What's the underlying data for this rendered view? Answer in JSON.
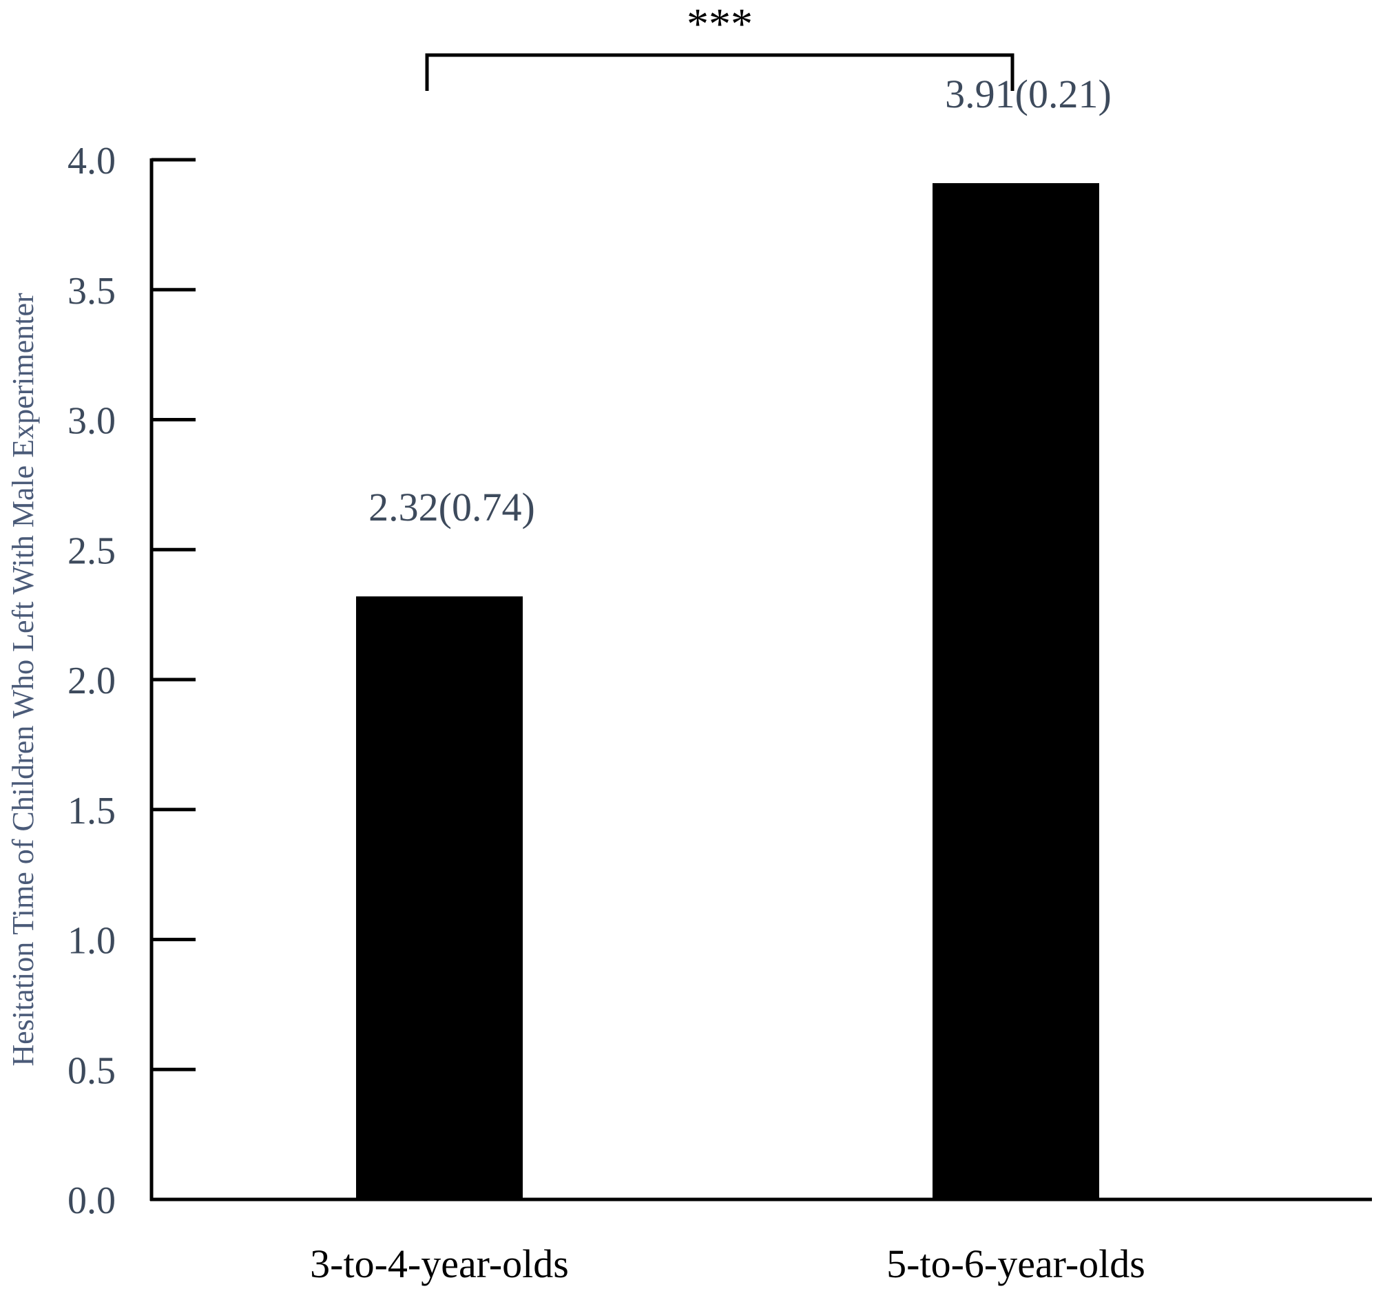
{
  "chart_data": {
    "type": "bar",
    "categories": [
      "3-to-4-year-olds",
      "5-to-6-year-olds"
    ],
    "values": [
      2.32,
      3.91
    ],
    "data_labels": [
      "2.32(0.74)",
      "3.91(0.21)"
    ],
    "title": "",
    "xlabel": "",
    "ylabel": "Hesitation Time of Children Who Left With Male Experimenter",
    "ylim": [
      0,
      4.0
    ],
    "yticks": [
      0.0,
      0.5,
      1.0,
      1.5,
      2.0,
      2.5,
      3.0,
      3.5,
      4.0
    ],
    "ytick_labels": [
      "0.0",
      "0.5",
      "1.0",
      "1.5",
      "2.0",
      "2.5",
      "3.0",
      "3.5",
      "4.0"
    ],
    "grid": false,
    "significance": {
      "label": "***",
      "between": [
        "3-to-4-year-olds",
        "5-to-6-year-olds"
      ]
    },
    "colors": {
      "bar": "#000000",
      "axis": "#000000",
      "tick_text": "#3d4a5c",
      "ylabel_text": "#4a5a78"
    }
  }
}
